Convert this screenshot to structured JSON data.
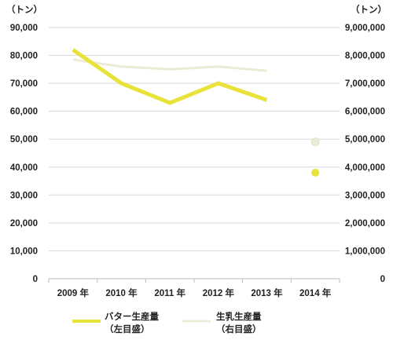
{
  "chart_data": {
    "type": "line",
    "categories": [
      "2009 年",
      "2010 年",
      "2011 年",
      "2012 年",
      "2013 年",
      "2014 年"
    ],
    "left_axis": {
      "unit_label": "（トン）",
      "ylim": [
        0,
        90000
      ],
      "tick_labels": [
        "0",
        "10,000",
        "20,000",
        "30,000",
        "40,000",
        "50,000",
        "60,000",
        "70,000",
        "80,000",
        "90,000"
      ]
    },
    "right_axis": {
      "unit_label": "（トン）",
      "ylim": [
        0,
        9000000
      ],
      "tick_labels": [
        "0",
        "1,000,000",
        "2,000,000",
        "3,000,000",
        "4,000,000",
        "5,000,000",
        "6,000,000",
        "7,000,000",
        "8,000,000",
        "9,000,000"
      ]
    },
    "grid": true,
    "legend_position": "bottom",
    "series": [
      {
        "name": "バター生産量",
        "name_sub": "（左目盛）",
        "axis": "left",
        "color": "#e8e23a",
        "values": [
          82000,
          70000,
          63000,
          70000,
          64000,
          null
        ],
        "point": {
          "category": "2014 年",
          "value": 38000
        }
      },
      {
        "name": "生乳生産量",
        "name_sub": "（右目盛）",
        "axis": "right",
        "color": "#ecebd6",
        "values": [
          7850000,
          7600000,
          7500000,
          7600000,
          7450000,
          null
        ],
        "point": {
          "category": "2014 年",
          "value": 4900000
        }
      }
    ]
  }
}
